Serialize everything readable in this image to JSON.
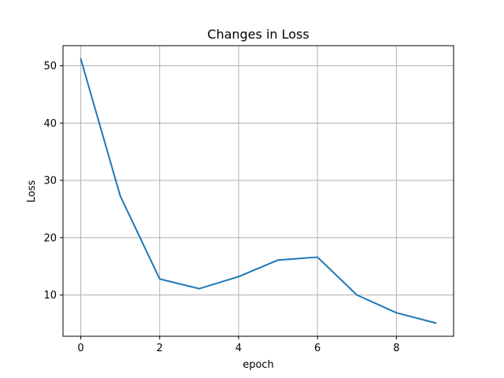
{
  "chart_data": {
    "type": "line",
    "title": "Changes in Loss",
    "xlabel": "epoch",
    "ylabel": "Loss",
    "x": [
      0,
      1,
      2,
      3,
      4,
      5,
      6,
      7,
      8,
      9
    ],
    "series": [
      {
        "values": [
          51.2,
          27.3,
          12.8,
          11.1,
          13.2,
          16.1,
          16.6,
          10.0,
          6.9,
          5.1
        ]
      }
    ],
    "xlim": [
      -0.45,
      9.45
    ],
    "ylim": [
      2.8,
      53.5
    ],
    "xticks": [
      0,
      2,
      4,
      6,
      8
    ],
    "yticks": [
      10,
      20,
      30,
      40,
      50
    ],
    "grid": true,
    "line_color": "#1f77b4"
  }
}
